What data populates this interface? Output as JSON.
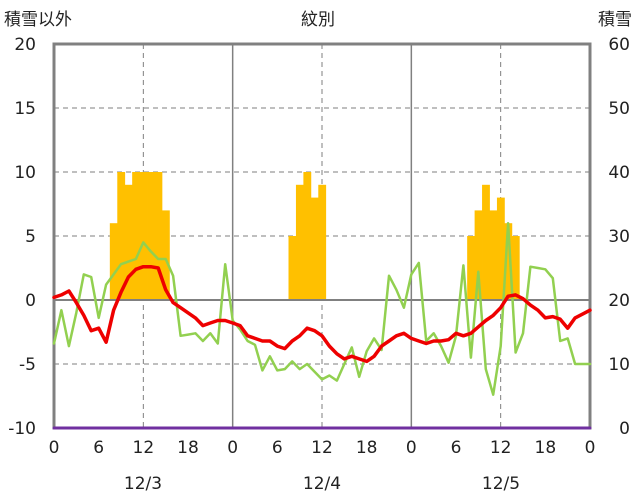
{
  "chart_data": {
    "type": "bar+line",
    "title": "紋別",
    "left_axis": {
      "label": "積雪以外",
      "min": -10,
      "max": 20,
      "ticks": [
        "-10",
        "-5",
        "0",
        "5",
        "10",
        "15",
        "20"
      ]
    },
    "right_axis": {
      "label": "積雪",
      "min": 0,
      "max": 60,
      "ticks": [
        "0",
        "10",
        "20",
        "30",
        "40",
        "50",
        "60"
      ]
    },
    "x_axis": {
      "min_hour": 0,
      "max_hour": 72,
      "tick_labels": [
        "0",
        "6",
        "12",
        "18",
        "0",
        "6",
        "12",
        "18",
        "0",
        "6",
        "12",
        "18",
        "0"
      ],
      "day_labels": [
        "12/3",
        "12/4",
        "12/5"
      ]
    },
    "grid": {
      "horizontal_at_left_values": [
        15,
        10,
        5,
        -5
      ],
      "vertical_dashed_hours": [
        12,
        36,
        60
      ],
      "vertical_solid_hours": [
        24,
        48
      ]
    },
    "colors": {
      "bars": "#ffc000",
      "red_line": "#ee0000",
      "green_line": "#92d050",
      "purple_line": "#7030a0",
      "zero_line": "#808080",
      "frame": "#808080"
    },
    "bars": {
      "axis": "left",
      "hours": [
        8,
        9,
        10,
        11,
        12,
        13,
        14,
        15,
        32,
        33,
        34,
        35,
        36,
        56,
        57,
        58,
        59,
        60,
        61,
        62
      ],
      "values": [
        6,
        10,
        9,
        10,
        10,
        10,
        10,
        7,
        5,
        9,
        10,
        8,
        9,
        5,
        7,
        9,
        7,
        8,
        6,
        5
      ]
    },
    "series": [
      {
        "color_key": "red_line",
        "axis": "left",
        "x": [
          0,
          1,
          2,
          3,
          4,
          5,
          6,
          7,
          8,
          9,
          10,
          11,
          12,
          13,
          14,
          15,
          16,
          17,
          18,
          19,
          20,
          21,
          22,
          23,
          24,
          25,
          26,
          27,
          28,
          29,
          30,
          31,
          32,
          33,
          34,
          35,
          36,
          37,
          38,
          39,
          40,
          41,
          42,
          43,
          44,
          45,
          46,
          47,
          48,
          49,
          50,
          51,
          52,
          53,
          54,
          55,
          56,
          57,
          58,
          59,
          60,
          61,
          62,
          63,
          64,
          65,
          66,
          67,
          68,
          69,
          70,
          71,
          72
        ],
        "y": [
          0.2,
          0.4,
          0.7,
          -0.2,
          -1.2,
          -2.4,
          -2.2,
          -3.3,
          -0.8,
          0.6,
          1.8,
          2.4,
          2.6,
          2.6,
          2.5,
          0.8,
          -0.2,
          -0.6,
          -1.0,
          -1.4,
          -2.0,
          -1.8,
          -1.6,
          -1.6,
          -1.8,
          -2.0,
          -2.8,
          -3.0,
          -3.2,
          -3.2,
          -3.6,
          -3.8,
          -3.2,
          -2.8,
          -2.2,
          -2.4,
          -2.8,
          -3.6,
          -4.2,
          -4.6,
          -4.4,
          -4.6,
          -4.8,
          -4.4,
          -3.6,
          -3.2,
          -2.8,
          -2.6,
          -3.0,
          -3.2,
          -3.4,
          -3.2,
          -3.2,
          -3.1,
          -2.6,
          -2.8,
          -2.6,
          -2.1,
          -1.6,
          -1.2,
          -0.6,
          0.3,
          0.4,
          0.1,
          -0.4,
          -0.8,
          -1.4,
          -1.3,
          -1.5,
          -2.2,
          -1.4,
          -1.1,
          -0.8
        ]
      },
      {
        "color_key": "green_line",
        "axis": "left",
        "x": [
          0,
          1,
          2,
          3,
          4,
          5,
          6,
          7,
          8,
          9,
          10,
          11,
          12,
          13,
          14,
          15,
          16,
          17,
          18,
          19,
          20,
          21,
          22,
          23,
          24,
          25,
          26,
          27,
          28,
          29,
          30,
          31,
          32,
          33,
          34,
          35,
          36,
          37,
          38,
          39,
          40,
          41,
          42,
          43,
          44,
          45,
          46,
          47,
          48,
          49,
          50,
          51,
          52,
          53,
          54,
          55,
          56,
          57,
          58,
          59,
          60,
          61,
          62,
          63,
          64,
          65,
          66,
          67,
          68,
          69,
          70,
          71,
          72
        ],
        "y": [
          -3.4,
          -0.8,
          -3.6,
          -1.0,
          2.0,
          1.8,
          -1.4,
          1.2,
          2.0,
          2.8,
          3.0,
          3.2,
          4.5,
          3.8,
          3.2,
          3.2,
          1.9,
          -2.8,
          -2.7,
          -2.6,
          -3.2,
          -2.6,
          -3.4,
          2.8,
          -1.6,
          -2.3,
          -3.2,
          -3.5,
          -5.5,
          -4.4,
          -5.5,
          -5.4,
          -4.8,
          -5.4,
          -5.0,
          -5.6,
          -6.2,
          -5.9,
          -6.3,
          -5.0,
          -3.7,
          -6.0,
          -4.0,
          -3.0,
          -3.9,
          1.9,
          0.8,
          -0.6,
          2.0,
          2.9,
          -3.2,
          -2.6,
          -3.6,
          -4.9,
          -2.8,
          2.7,
          -4.5,
          2.2,
          -5.4,
          -7.4,
          -3.6,
          6.0,
          -4.1,
          -2.6,
          2.6,
          2.5,
          2.4,
          1.7,
          -3.2,
          -3.0,
          -5.0,
          -5.0,
          -5.0
        ],
        "note_x_offset_hours": 0
      },
      {
        "color_key": "purple_line",
        "axis": "right",
        "x": [
          0,
          72
        ],
        "y": [
          0,
          0
        ]
      }
    ]
  }
}
